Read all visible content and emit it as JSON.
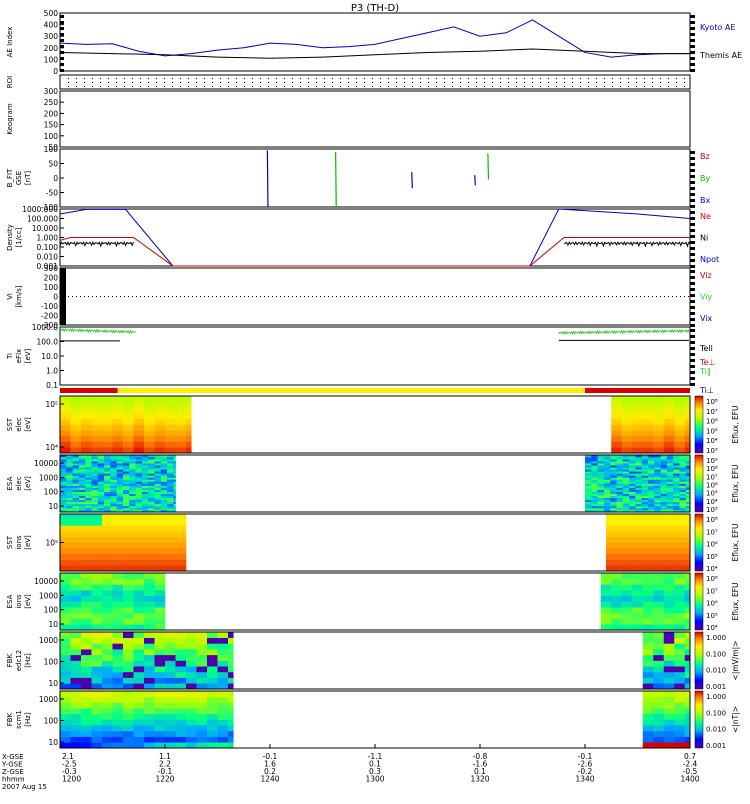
{
  "title": "P3 (TH-D)",
  "date": "2007 Aug 15",
  "colors": {
    "kyoto": "#0000cc",
    "themis": "#000000",
    "bz": "#cc0000",
    "by": "#00bb00",
    "bx": "#0000cc",
    "red": "#d90000",
    "yellow": "#ffee00",
    "green": "#33cc33",
    "blue": "#0000cc"
  },
  "chart_data": {
    "type": "line",
    "x_range": [
      "12:00",
      "14:00"
    ],
    "time_ticks": [
      "1200",
      "1220",
      "1240",
      "1300",
      "1320",
      "1340",
      "1400"
    ],
    "ephemeris": {
      "row_labels": [
        "X-GSE",
        "Y-GSE",
        "Z-GSE",
        "hhmm",
        "2007 Aug 15"
      ],
      "columns": [
        [
          "2.1",
          "-2.5",
          "-0.3",
          "1200"
        ],
        [
          "1.1",
          "2.2",
          "-0.1",
          "1220"
        ],
        [
          "-0.1",
          "1.6",
          "0.2",
          "1240"
        ],
        [
          "-1.1",
          "0.1",
          "0.3",
          "1300"
        ],
        [
          "-0.8",
          "-1.6",
          "0.1",
          "1320"
        ],
        [
          "-0.1",
          "-2.6",
          "-0.2",
          "1340"
        ],
        [
          "0.7",
          "-2.4",
          "-0.5",
          "1400"
        ]
      ]
    },
    "panels": [
      {
        "id": "ae",
        "ylabel": "AE Index",
        "ylim": [
          0,
          500
        ],
        "yticks": [
          "500",
          "400",
          "300",
          "200",
          "100",
          "0"
        ],
        "legend": [
          "Kyoto AE",
          "Themis AE"
        ],
        "series": [
          {
            "name": "Kyoto AE",
            "color": "#0000cc",
            "x": [
              0,
              5,
              10,
              15,
              20,
              25,
              30,
              35,
              40,
              45,
              50,
              55,
              60,
              65,
              70,
              75,
              80,
              85,
              90,
              95,
              100,
              105,
              110,
              115,
              120
            ],
            "y": [
              240,
              230,
              235,
              170,
              130,
              150,
              180,
              200,
              240,
              230,
              200,
              210,
              230,
              280,
              330,
              380,
              300,
              330,
              440,
              300,
              160,
              120,
              140,
              150,
              150
            ]
          },
          {
            "name": "Themis AE",
            "color": "#000000",
            "x": [
              0,
              10,
              20,
              30,
              40,
              50,
              60,
              70,
              80,
              90,
              100,
              110,
              120
            ],
            "y": [
              160,
              150,
              140,
              120,
              110,
              120,
              140,
              160,
              170,
              190,
              170,
              150,
              150
            ]
          }
        ]
      },
      {
        "id": "roi",
        "ylabel": "ROI"
      },
      {
        "id": "keogram",
        "ylabel": "Keogram",
        "ylim": [
          50,
          300
        ],
        "yticks": [
          "300",
          "250",
          "200",
          "150",
          "100",
          "50"
        ]
      },
      {
        "id": "bfit",
        "ylabel": "B_FIT\nGSE\n[nT]",
        "ylim": [
          -100,
          100
        ],
        "yticks": [
          "100",
          "50",
          "0",
          "-50",
          "-100"
        ],
        "legend": [
          "Bz",
          "By",
          "Bx"
        ],
        "spikes": [
          {
            "t": 39.5,
            "y0": 95,
            "y1": -100,
            "comp": "Bx"
          },
          {
            "t": 52.5,
            "y0": 90,
            "y1": -100,
            "comp": "By"
          },
          {
            "t": 67.0,
            "y0": 20,
            "y1": -35,
            "comp": "Bx"
          },
          {
            "t": 79.0,
            "y0": 10,
            "y1": -25,
            "comp": "Bx"
          },
          {
            "t": 81.5,
            "y0": 85,
            "y1": -5,
            "comp": "By"
          }
        ]
      },
      {
        "id": "density",
        "ylabel": "Density\n[1/cc]",
        "yscale": "log",
        "ylim": [
          0.001,
          1000
        ],
        "yticks": [
          "1000.000",
          "100.000",
          "10.000",
          "1.000",
          "0.100",
          "0.010",
          "0.001"
        ],
        "legend": [
          "Ne",
          "Ni",
          "Npot"
        ],
        "series": [
          {
            "name": "Ne",
            "color": "#0000cc",
            "x": [
              0,
              5,
              12.5,
              21.5,
              89.5,
              95,
              110,
              120
            ],
            "y": [
              300,
              900,
              900,
              0.001,
              0.001,
              1000,
              300,
              100
            ]
          },
          {
            "name": "Ni",
            "color": "#cc0000",
            "x": [
              0,
              2,
              14,
              21.5,
              89.5,
              96,
              120
            ],
            "y": [
              0.5,
              1,
              1,
              0.001,
              0.001,
              1,
              1
            ]
          },
          {
            "name": "Npot",
            "color": "#000000",
            "x": [
              0,
              14,
              96,
              120
            ],
            "y": [
              0.2,
              0.25,
              0.2,
              0.2
            ]
          }
        ]
      },
      {
        "id": "velocity",
        "ylabel": "Vi\n[km/s]",
        "ylim": [
          -300,
          300
        ],
        "yticks": [
          "300",
          "200",
          "100",
          "0",
          "-100",
          "-200",
          "-300"
        ],
        "legend": [
          "Viz",
          "Viy",
          "Vix"
        ]
      },
      {
        "id": "temperature",
        "ylabel": "Ti\neFlx\n[eV]",
        "yscale": "log",
        "ylim": [
          0.1,
          1000
        ],
        "yticks": [
          "1000.0",
          "100.0",
          "10.0",
          "1.0",
          "0.1"
        ],
        "legend": [
          "Tell",
          "Te⊥",
          "Ti‖",
          "Ti⊥"
        ],
        "series": [
          {
            "name": "Ti‖",
            "color": "#33cc33",
            "x": [
              0,
              14.5,
              95,
              120
            ],
            "y": [
              650,
              450,
              400,
              550
            ]
          },
          {
            "name": "Tell",
            "color": "#000000",
            "x": [
              0,
              11.5,
              95,
              120
            ],
            "y": [
              110,
              110,
              120,
              120
            ]
          }
        ]
      },
      {
        "id": "mode",
        "segments": [
          {
            "x0": 0,
            "x1": 11,
            "color": "red"
          },
          {
            "x0": 11,
            "x1": 100,
            "color": "yellow"
          },
          {
            "x0": 100,
            "x1": 120,
            "color": "red"
          }
        ]
      },
      {
        "id": "sst_e",
        "ylabel": "SST\nelec\n[eV]",
        "yticks": [
          "10⁵",
          "10⁴"
        ],
        "colorbar": [
          "10⁸",
          "10⁷",
          "10⁶",
          "10⁵",
          "10⁴",
          "10³"
        ],
        "cbar_label": "Eflux, EFU",
        "data_ranges": [
          [
            0,
            25
          ],
          [
            105,
            120
          ]
        ]
      },
      {
        "id": "esa_e",
        "ylabel": "ESA\nelec\n[eV]",
        "yticks": [
          "10000",
          "1000",
          "100",
          "10"
        ],
        "colorbar": [
          "10⁹",
          "10⁸",
          "10⁷",
          "10⁶",
          "10⁵",
          "10⁴",
          "10³"
        ],
        "cbar_label": "Eflux, EFU",
        "data_ranges": [
          [
            0,
            22
          ],
          [
            100,
            120
          ]
        ]
      },
      {
        "id": "sst_i",
        "ylabel": "SST\nions\n[eV]",
        "yticks": [
          "10⁵"
        ],
        "colorbar": [
          "10⁸",
          "10⁷",
          "10⁶",
          "10⁵",
          "10⁴"
        ],
        "cbar_label": "Eflux, EFU",
        "data_ranges": [
          [
            0,
            24
          ],
          [
            104,
            120
          ]
        ]
      },
      {
        "id": "esa_i",
        "ylabel": "ESA\nions\n[eV]",
        "yticks": [
          "10000",
          "1000",
          "100",
          "10"
        ],
        "colorbar": [
          "10⁸",
          "10⁷",
          "10⁶",
          "10⁵",
          "10⁴"
        ],
        "cbar_label": "Eflux, EFU",
        "data_ranges": [
          [
            0,
            20
          ],
          [
            103,
            120
          ]
        ]
      },
      {
        "id": "fbk_e",
        "ylabel": "FBK\nedc12\n[Hz]",
        "yticks": [
          "1000",
          "100",
          "10"
        ],
        "colorbar": [
          "1.000",
          "0.100",
          "0.010",
          "0.001"
        ],
        "cbar_label": "<|mV/m|>",
        "data_ranges": [
          [
            0,
            33
          ],
          [
            111,
            120
          ]
        ]
      },
      {
        "id": "fbk_b",
        "ylabel": "FBK\nscm1\n[Hz]",
        "yticks": [
          "1000",
          "100",
          "10"
        ],
        "colorbar": [
          "1.000",
          "0.100",
          "0.010",
          "0.001"
        ],
        "cbar_label": "<|nT|>",
        "data_ranges": [
          [
            0,
            33
          ],
          [
            111,
            120
          ]
        ]
      }
    ]
  }
}
